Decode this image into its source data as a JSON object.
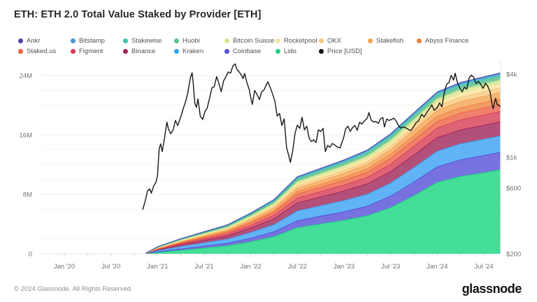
{
  "title": "ETH: ETH 2.0 Total Value Staked by Provider [ETH]",
  "footer": {
    "copyright": "© 2024 Glassnode. All Rights Reserved.",
    "brand": "glassnode"
  },
  "chart_data": {
    "type": "area",
    "stacked": true,
    "title": "ETH: ETH 2.0 Total Value Staked by Provider [ETH]",
    "x_unit": "months-since-Jan-2020",
    "x_tick_positions": [
      0,
      6,
      12,
      18,
      24,
      30,
      36,
      42,
      48,
      54
    ],
    "x_tick_labels": [
      "Jan '20",
      "Jul '20",
      "Jan '21",
      "Jul '21",
      "Jan '22",
      "Jul '22",
      "Jan '23",
      "Jul '23",
      "Jan '24",
      "Jul '24"
    ],
    "left_axis": {
      "unit": "ETH",
      "ticks": [
        {
          "value": 0,
          "label": "0"
        },
        {
          "value": 8,
          "label": "8M"
        },
        {
          "value": 16,
          "label": "16M"
        },
        {
          "value": 24,
          "label": "24M"
        }
      ]
    },
    "right_axis": {
      "scale": "log",
      "unit": "USD",
      "ticks": [
        {
          "value": 200,
          "label": "$200"
        },
        {
          "value": 600,
          "label": "$600"
        },
        {
          "value": 1000,
          "label": "$1k"
        },
        {
          "value": 4000,
          "label": "$4k"
        }
      ]
    },
    "x": [
      10.5,
      12,
      15,
      18,
      21,
      24,
      27,
      30,
      33,
      36,
      39,
      42,
      45,
      48,
      51,
      54,
      56.1
    ],
    "series": [
      {
        "name": "Ankr",
        "color": "#5047a9",
        "values": [
          0.0,
          0.02,
          0.03,
          0.04,
          0.05,
          0.06,
          0.07,
          0.09,
          0.09,
          0.1,
          0.1,
          0.1,
          0.1,
          0.1,
          0.1,
          0.1,
          0.1
        ]
      },
      {
        "name": "Bitstamp",
        "color": "#4596d6",
        "values": [
          0.0,
          0.02,
          0.04,
          0.05,
          0.06,
          0.08,
          0.1,
          0.13,
          0.14,
          0.15,
          0.16,
          0.17,
          0.18,
          0.19,
          0.2,
          0.2,
          0.2
        ]
      },
      {
        "name": "Stakewise",
        "color": "#3fbfae",
        "values": [
          0.0,
          0.03,
          0.05,
          0.07,
          0.09,
          0.12,
          0.15,
          0.2,
          0.22,
          0.23,
          0.25,
          0.27,
          0.28,
          0.29,
          0.3,
          0.3,
          0.3
        ]
      },
      {
        "name": "Huobi",
        "color": "#5fc08a",
        "values": [
          0.0,
          0.04,
          0.08,
          0.11,
          0.14,
          0.18,
          0.22,
          0.28,
          0.3,
          0.32,
          0.34,
          0.36,
          0.38,
          0.39,
          0.4,
          0.4,
          0.4
        ]
      },
      {
        "name": "Bitcoin Suisse",
        "color": "#cfe68f",
        "values": [
          0.01,
          0.05,
          0.09,
          0.12,
          0.15,
          0.19,
          0.23,
          0.3,
          0.32,
          0.34,
          0.36,
          0.39,
          0.42,
          0.44,
          0.44,
          0.45,
          0.45
        ]
      },
      {
        "name": "Rocketpool",
        "color": "#f7e59b",
        "values": [
          0.0,
          0.02,
          0.05,
          0.07,
          0.09,
          0.13,
          0.17,
          0.24,
          0.27,
          0.3,
          0.33,
          0.38,
          0.44,
          0.5,
          0.52,
          0.54,
          0.55
        ]
      },
      {
        "name": "OKX",
        "color": "#f7c97e",
        "values": [
          0.0,
          0.03,
          0.07,
          0.1,
          0.13,
          0.18,
          0.23,
          0.32,
          0.35,
          0.38,
          0.42,
          0.47,
          0.53,
          0.59,
          0.62,
          0.64,
          0.65
        ]
      },
      {
        "name": "Stakefish",
        "color": "#f5a452",
        "values": [
          0.01,
          0.05,
          0.1,
          0.14,
          0.18,
          0.25,
          0.32,
          0.44,
          0.48,
          0.52,
          0.57,
          0.64,
          0.72,
          0.79,
          0.82,
          0.84,
          0.85
        ]
      },
      {
        "name": "Abyss Finance",
        "color": "#f0833f",
        "values": [
          0.0,
          0.03,
          0.07,
          0.1,
          0.13,
          0.18,
          0.24,
          0.34,
          0.38,
          0.42,
          0.47,
          0.54,
          0.62,
          0.69,
          0.72,
          0.74,
          0.75
        ]
      },
      {
        "name": "Staked.us",
        "color": "#ec6147",
        "values": [
          0.01,
          0.06,
          0.12,
          0.17,
          0.22,
          0.3,
          0.39,
          0.54,
          0.59,
          0.64,
          0.7,
          0.78,
          0.86,
          0.91,
          0.93,
          0.94,
          0.95
        ]
      },
      {
        "name": "Figment",
        "color": "#d63c55",
        "values": [
          0.01,
          0.07,
          0.14,
          0.2,
          0.26,
          0.36,
          0.47,
          0.65,
          0.72,
          0.79,
          0.87,
          1.0,
          1.15,
          1.28,
          1.34,
          1.38,
          1.4
        ]
      },
      {
        "name": "Binance",
        "color": "#a02458",
        "values": [
          0.01,
          0.12,
          0.25,
          0.35,
          0.45,
          0.62,
          0.8,
          1.1,
          1.2,
          1.3,
          1.4,
          1.55,
          1.7,
          1.82,
          1.87,
          1.89,
          1.9
        ]
      },
      {
        "name": "Kraken",
        "color": "#38a1f2",
        "values": [
          0.02,
          0.15,
          0.3,
          0.42,
          0.54,
          0.75,
          0.95,
          1.3,
          1.4,
          1.5,
          1.6,
          1.75,
          1.95,
          2.1,
          2.15,
          2.18,
          2.2
        ]
      },
      {
        "name": "Coinbase",
        "color": "#554fd8",
        "values": [
          0.01,
          0.1,
          0.2,
          0.28,
          0.36,
          0.5,
          0.66,
          0.95,
          1.05,
          1.15,
          1.3,
          1.55,
          1.85,
          2.1,
          2.25,
          2.32,
          2.35
        ]
      },
      {
        "name": "Lido",
        "color": "#17d67e",
        "values": [
          0.02,
          0.15,
          0.45,
          0.75,
          1.05,
          1.6,
          2.3,
          3.5,
          4.0,
          4.5,
          5.1,
          6.2,
          7.8,
          9.6,
          10.4,
          10.9,
          11.3
        ]
      }
    ],
    "price": {
      "name": "Price [USD]",
      "color": "#17181a",
      "points": [
        [
          10.1,
          420
        ],
        [
          10.4,
          480
        ],
        [
          10.7,
          570
        ],
        [
          11.0,
          590
        ],
        [
          11.2,
          550
        ],
        [
          11.5,
          620
        ],
        [
          11.8,
          660
        ],
        [
          12.0,
          740
        ],
        [
          12.2,
          1150
        ],
        [
          12.4,
          1250
        ],
        [
          12.6,
          1100
        ],
        [
          12.9,
          1380
        ],
        [
          13.2,
          1800
        ],
        [
          13.4,
          1600
        ],
        [
          13.7,
          1480
        ],
        [
          14.0,
          1580
        ],
        [
          14.3,
          1850
        ],
        [
          14.6,
          1700
        ],
        [
          15.0,
          1970
        ],
        [
          15.3,
          2250
        ],
        [
          15.6,
          2520
        ],
        [
          15.9,
          2950
        ],
        [
          16.1,
          3450
        ],
        [
          16.3,
          3900
        ],
        [
          16.45,
          4100
        ],
        [
          16.6,
          3400
        ],
        [
          16.8,
          2450
        ],
        [
          17.0,
          2300
        ],
        [
          17.2,
          2650
        ],
        [
          17.5,
          1990
        ],
        [
          17.8,
          1880
        ],
        [
          18.1,
          2150
        ],
        [
          18.4,
          2280
        ],
        [
          18.7,
          2700
        ],
        [
          19.0,
          3180
        ],
        [
          19.3,
          3250
        ],
        [
          19.6,
          3850
        ],
        [
          19.9,
          3420
        ],
        [
          20.2,
          2990
        ],
        [
          20.5,
          3580
        ],
        [
          20.8,
          3850
        ],
        [
          21.1,
          4150
        ],
        [
          21.4,
          4080
        ],
        [
          21.7,
          4600
        ],
        [
          22.0,
          4750
        ],
        [
          22.2,
          4350
        ],
        [
          22.5,
          4150
        ],
        [
          22.8,
          3950
        ],
        [
          23.0,
          3720
        ],
        [
          23.2,
          4050
        ],
        [
          23.5,
          3480
        ],
        [
          23.8,
          3100
        ],
        [
          24.0,
          2700
        ],
        [
          24.2,
          2420
        ],
        [
          24.5,
          3050
        ],
        [
          24.8,
          2850
        ],
        [
          25.1,
          2620
        ],
        [
          25.4,
          2980
        ],
        [
          25.7,
          3080
        ],
        [
          26.0,
          3350
        ],
        [
          26.2,
          3520
        ],
        [
          26.5,
          3220
        ],
        [
          26.8,
          2880
        ],
        [
          27.1,
          2550
        ],
        [
          27.4,
          1990
        ],
        [
          27.7,
          2080
        ],
        [
          28.0,
          1700
        ],
        [
          28.3,
          1900
        ],
        [
          28.6,
          1180
        ],
        [
          28.9,
          1020
        ],
        [
          29.1,
          920
        ],
        [
          29.4,
          1120
        ],
        [
          29.7,
          1500
        ],
        [
          30.0,
          1710
        ],
        [
          30.3,
          1620
        ],
        [
          30.6,
          1950
        ],
        [
          30.9,
          1580
        ],
        [
          31.2,
          1680
        ],
        [
          31.5,
          1380
        ],
        [
          31.8,
          1300
        ],
        [
          32.1,
          1340
        ],
        [
          32.4,
          1280
        ],
        [
          32.7,
          1580
        ],
        [
          33.0,
          1540
        ],
        [
          33.3,
          1620
        ],
        [
          33.6,
          1100
        ],
        [
          33.9,
          1220
        ],
        [
          34.2,
          1180
        ],
        [
          34.5,
          1260
        ],
        [
          34.8,
          1230
        ],
        [
          35.1,
          1190
        ],
        [
          35.5,
          1170
        ],
        [
          36.0,
          1420
        ],
        [
          36.2,
          1600
        ],
        [
          36.5,
          1680
        ],
        [
          36.8,
          1540
        ],
        [
          37.1,
          1640
        ],
        [
          37.4,
          1700
        ],
        [
          37.7,
          1570
        ],
        [
          38.0,
          1790
        ],
        [
          38.3,
          1740
        ],
        [
          38.6,
          1830
        ],
        [
          39.0,
          1920
        ],
        [
          39.2,
          2110
        ],
        [
          39.5,
          1860
        ],
        [
          39.8,
          1800
        ],
        [
          40.1,
          1820
        ],
        [
          40.4,
          1760
        ],
        [
          40.7,
          1900
        ],
        [
          41.0,
          1940
        ],
        [
          41.2,
          1660
        ],
        [
          41.5,
          1890
        ],
        [
          41.8,
          1850
        ],
        [
          42.1,
          1880
        ],
        [
          42.4,
          1920
        ],
        [
          42.7,
          1840
        ],
        [
          43.0,
          1700
        ],
        [
          43.3,
          1630
        ],
        [
          43.6,
          1660
        ],
        [
          44.0,
          1630
        ],
        [
          44.3,
          1590
        ],
        [
          44.6,
          1560
        ],
        [
          45.0,
          1680
        ],
        [
          45.3,
          1790
        ],
        [
          45.6,
          1840
        ],
        [
          46.0,
          2050
        ],
        [
          46.3,
          1960
        ],
        [
          46.6,
          2090
        ],
        [
          47.0,
          2250
        ],
        [
          47.3,
          2400
        ],
        [
          47.6,
          2190
        ],
        [
          48.0,
          2290
        ],
        [
          48.3,
          2480
        ],
        [
          48.6,
          2320
        ],
        [
          48.9,
          2920
        ],
        [
          49.2,
          3380
        ],
        [
          49.5,
          3480
        ],
        [
          49.8,
          3920
        ],
        [
          50.1,
          3620
        ],
        [
          50.3,
          4070
        ],
        [
          50.6,
          3480
        ],
        [
          50.9,
          3180
        ],
        [
          51.2,
          2980
        ],
        [
          51.5,
          3220
        ],
        [
          51.8,
          3120
        ],
        [
          52.1,
          3760
        ],
        [
          52.4,
          3940
        ],
        [
          52.7,
          3800
        ],
        [
          53.0,
          3420
        ],
        [
          53.3,
          3550
        ],
        [
          53.6,
          3380
        ],
        [
          53.9,
          3160
        ],
        [
          54.2,
          3440
        ],
        [
          54.5,
          3280
        ],
        [
          54.8,
          2980
        ],
        [
          55.0,
          2520
        ],
        [
          55.2,
          2250
        ],
        [
          55.5,
          2680
        ],
        [
          55.7,
          2420
        ],
        [
          56.1,
          2340
        ]
      ]
    }
  }
}
